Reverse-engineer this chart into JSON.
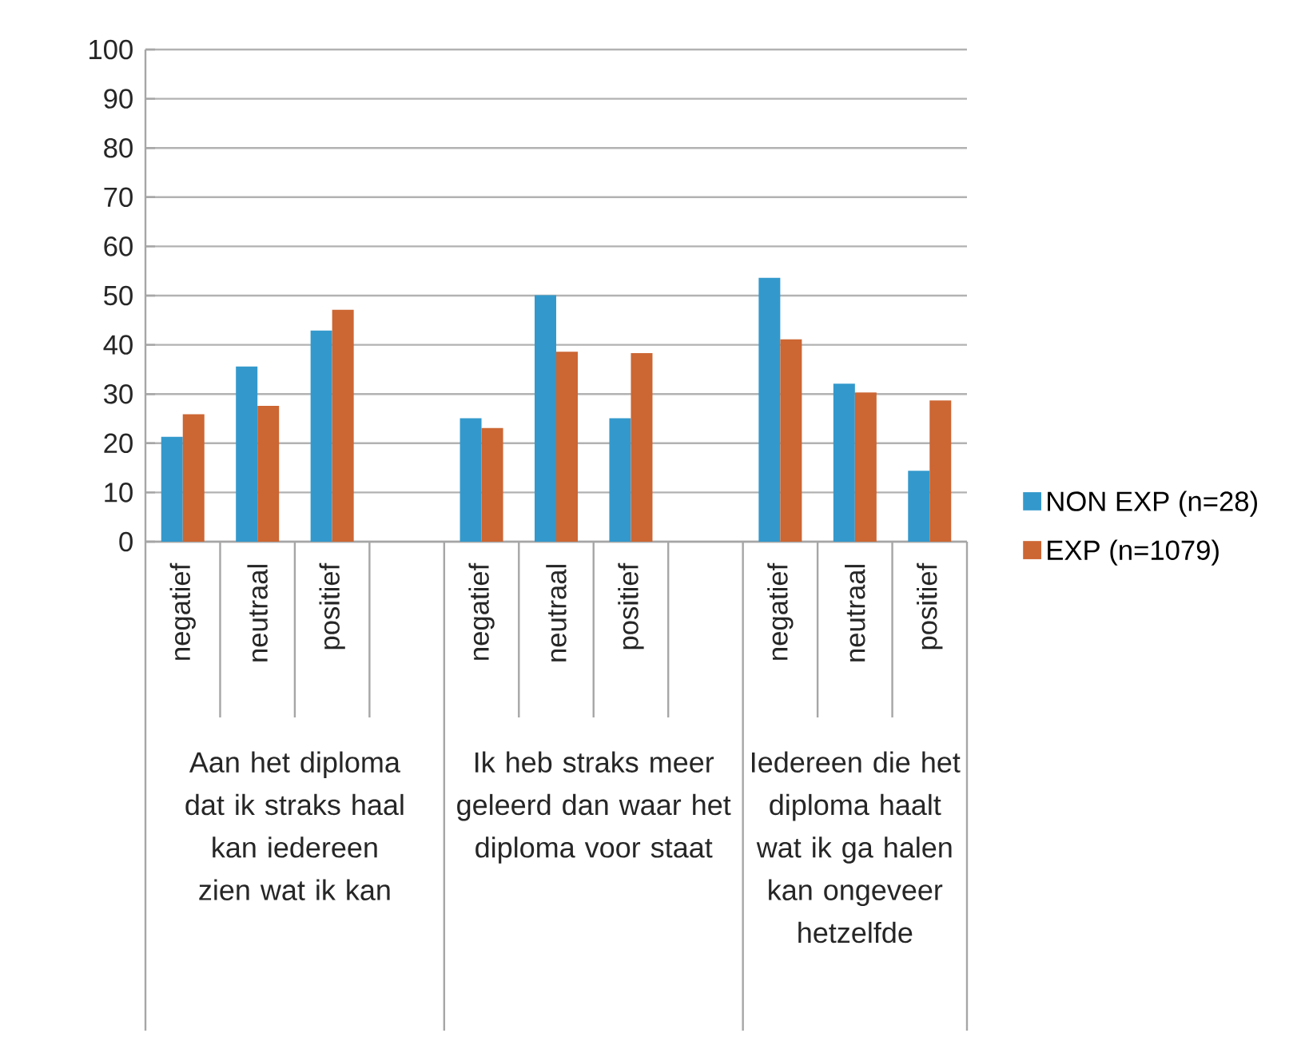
{
  "chart_data": {
    "type": "bar",
    "categories": [
      "negatief",
      "neutraal",
      "positief",
      null,
      "negatief",
      "neutraal",
      "positief",
      null,
      "negatief",
      "neutraal",
      "positief"
    ],
    "series": [
      {
        "name": "NON EXP (n=28)",
        "color": "#3399cc",
        "values": [
          21.3,
          35.6,
          42.9,
          null,
          25.1,
          50.1,
          25.1,
          null,
          53.6,
          32.1,
          14.4
        ]
      },
      {
        "name": "EXP (n=1079)",
        "color": "#cc6633",
        "values": [
          25.9,
          27.6,
          47.1,
          null,
          23.1,
          38.6,
          38.3,
          null,
          41.1,
          30.3,
          28.7
        ]
      }
    ],
    "annotations": [
      "Aan het diploma dat ik straks haal kan iedereen zien wat ik kan",
      "Ik heb straks meer geleerd dan waar het diploma voor staat",
      "Iedereen die het diploma haalt wat ik ga halen kan ongeveer hetzelfde"
    ],
    "ylim": [
      0,
      100
    ],
    "yticks": [
      0,
      10,
      20,
      30,
      40,
      50,
      60,
      70,
      80,
      90,
      100
    ],
    "grid": "y",
    "legend": "right"
  }
}
